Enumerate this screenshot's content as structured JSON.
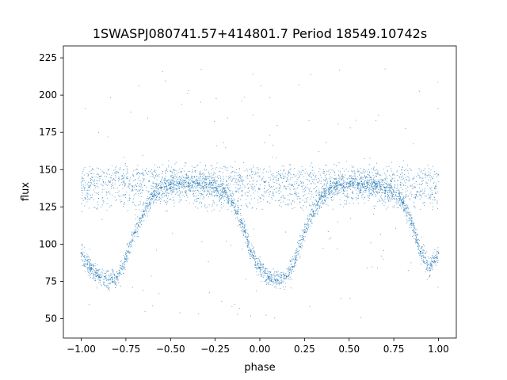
{
  "chart_data": {
    "type": "scatter",
    "title": "1SWASPJ080741.57+414801.7 Period 18549.10742s",
    "xlabel": "phase",
    "ylabel": "flux",
    "xlim": [
      -1.1,
      1.1
    ],
    "ylim": [
      37,
      233
    ],
    "xticks": [
      -1.0,
      -0.75,
      -0.5,
      -0.25,
      0.0,
      0.25,
      0.5,
      0.75,
      1.0
    ],
    "xtick_labels": [
      "−1.00",
      "−0.75",
      "−0.50",
      "−0.25",
      "0.00",
      "0.25",
      "0.50",
      "0.75",
      "1.00"
    ],
    "yticks": [
      50,
      75,
      100,
      125,
      150,
      175,
      200,
      225
    ],
    "ytick_labels": [
      "50",
      "75",
      "100",
      "125",
      "150",
      "175",
      "200",
      "225"
    ],
    "grid": false,
    "legend": "none",
    "color": "#1f77b4",
    "series": [
      {
        "x": [
          -1.0,
          -0.95,
          -0.9,
          -0.85,
          -0.8,
          -0.75,
          -0.7,
          -0.65,
          -0.6,
          -0.55,
          -0.5,
          -0.45,
          -0.4,
          -0.35,
          -0.3,
          -0.25,
          -0.2,
          -0.15,
          -0.1,
          -0.05,
          0.0,
          0.05,
          0.1,
          0.15,
          0.2,
          0.25,
          0.3,
          0.35,
          0.4,
          0.45,
          0.5,
          0.55,
          0.6,
          0.65,
          0.7,
          0.75,
          0.8,
          0.85,
          0.9,
          0.95,
          1.0
        ],
        "y": [
          94,
          84,
          78,
          76,
          78,
          90,
          108,
          122,
          132,
          138,
          140,
          141,
          141,
          141,
          140,
          138,
          135,
          128,
          114,
          95,
          84,
          78,
          76,
          78,
          90,
          108,
          122,
          132,
          138,
          140,
          141,
          141,
          141,
          140,
          138,
          135,
          128,
          114,
          95,
          84,
          94
        ]
      }
    ]
  }
}
